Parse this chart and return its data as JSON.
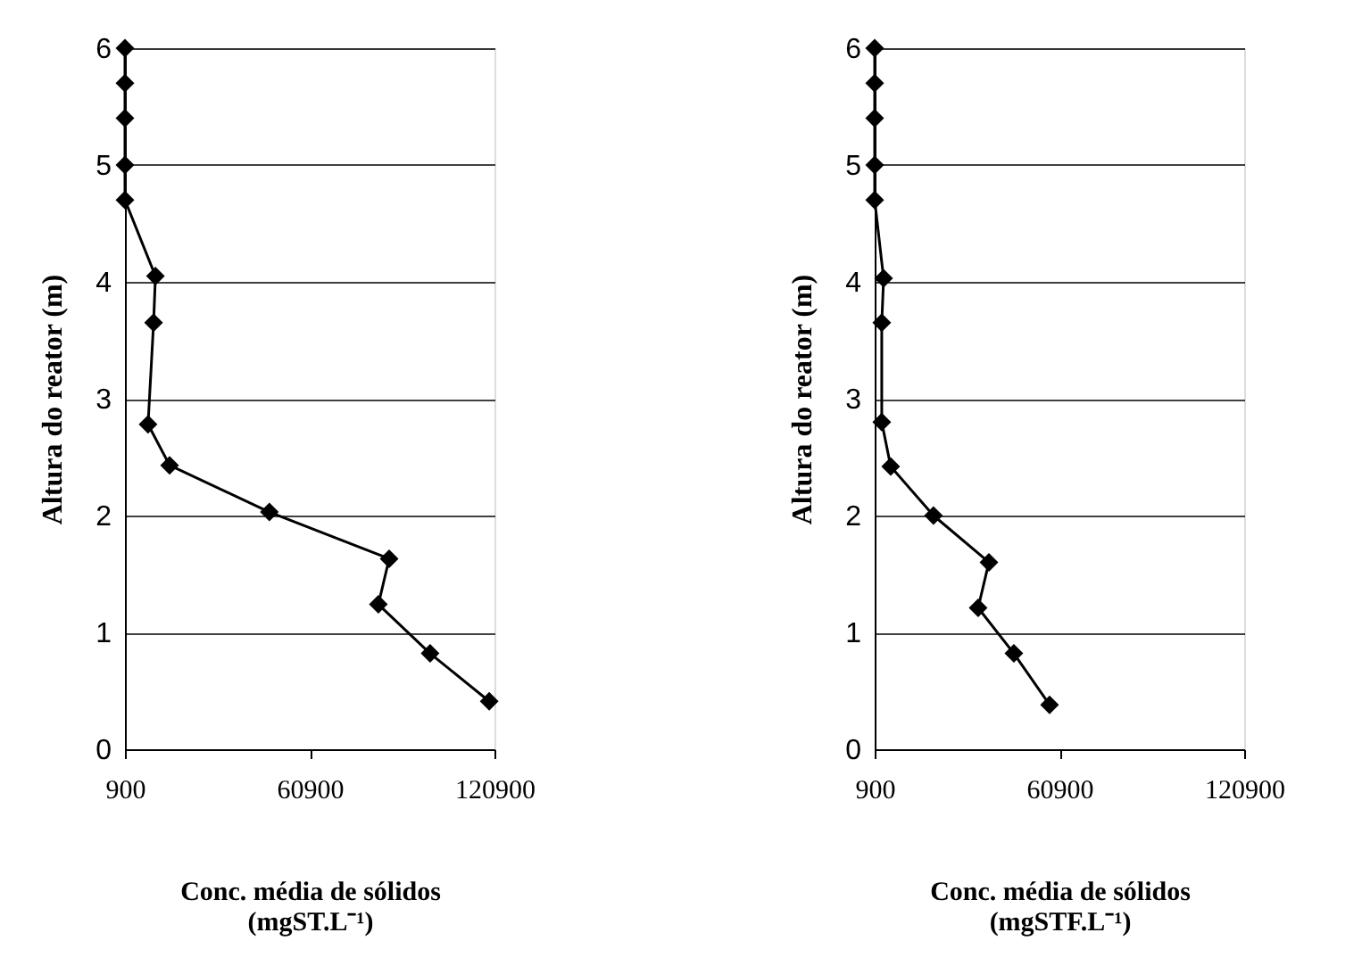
{
  "chart_data": [
    {
      "type": "line",
      "xlabel": "Conc. média de sólidos\n(mgST.L⁻¹)",
      "ylabel": "Altura do reator (m)",
      "xlim": [
        900,
        120900
      ],
      "xticks": [
        900,
        60900,
        120900
      ],
      "ylim": [
        0,
        6
      ],
      "yticks": [
        0,
        1,
        2,
        3,
        4,
        5,
        6
      ],
      "grid": "y",
      "marker": "diamond",
      "line_style": "solid",
      "series": [
        {
          "color": "#000000",
          "x": [
            900,
            900,
            900,
            900,
            900,
            10800,
            10200,
            8400,
            15400,
            47800,
            86700,
            83200,
            100000,
            119200
          ],
          "values": [
            6,
            5.7,
            5.4,
            5,
            4.7,
            4.05,
            3.65,
            2.78,
            2.43,
            2.03,
            1.63,
            1.24,
            0.82,
            0.41
          ]
        }
      ]
    },
    {
      "type": "line",
      "xlabel": "Conc. média de sólidos\n(mgSTF.L⁻¹)",
      "ylabel": "Altura do reator (m)",
      "xlim": [
        900,
        120900
      ],
      "xticks": [
        900,
        60900,
        120900
      ],
      "ylim": [
        0,
        6
      ],
      "yticks": [
        0,
        1,
        2,
        3,
        4,
        5,
        6
      ],
      "grid": "y",
      "marker": "diamond",
      "line_style": "solid",
      "series": [
        {
          "color": "#000000",
          "x": [
            900,
            900,
            900,
            900,
            900,
            3800,
            3200,
            3200,
            6100,
            20000,
            38000,
            34500,
            46100,
            57700
          ],
          "values": [
            6,
            5.7,
            5.4,
            5,
            4.7,
            4.03,
            3.65,
            2.8,
            2.42,
            2.0,
            1.6,
            1.21,
            0.82,
            0.38
          ]
        }
      ]
    }
  ]
}
